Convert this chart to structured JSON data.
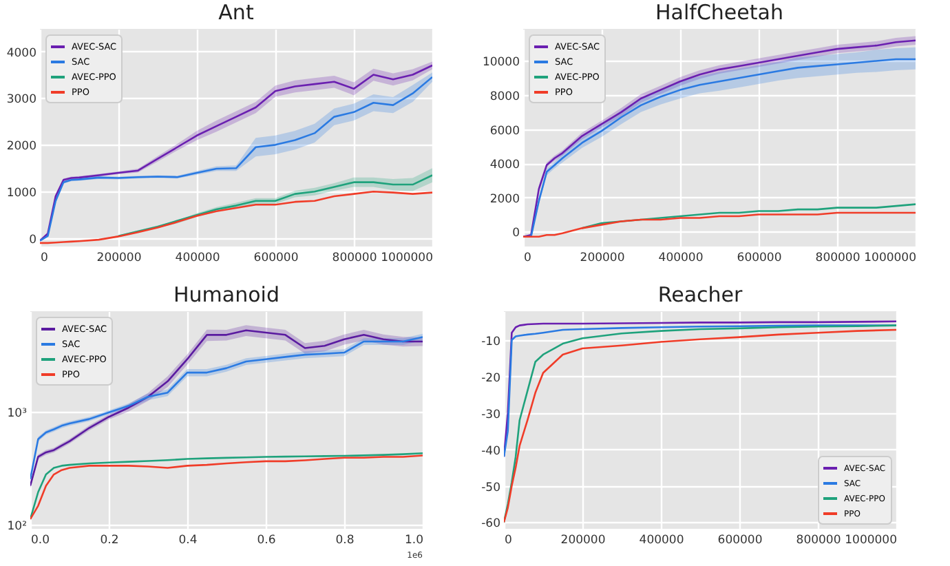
{
  "chart_data": [
    {
      "type": "line",
      "title": "Ant",
      "x": [
        0,
        20000,
        40000,
        60000,
        80000,
        100000,
        150000,
        200000,
        250000,
        300000,
        350000,
        400000,
        450000,
        500000,
        550000,
        600000,
        650000,
        700000,
        750000,
        800000,
        850000,
        900000,
        950000,
        1000000
      ],
      "xlim": [
        0,
        1000000
      ],
      "xticks": [
        0,
        200000,
        400000,
        600000,
        800000,
        1000000
      ],
      "ylim": [
        -175,
        4480
      ],
      "yticks": [
        0,
        1000,
        2000,
        3000,
        4000
      ],
      "grid": true,
      "legend": "top left",
      "series": [
        {
          "name": "AVEC-SAC",
          "color": "#6a1fb0",
          "values": [
            -50,
            100,
            900,
            1250,
            1290,
            1300,
            1350,
            1400,
            1450,
            1700,
            1950,
            2200,
            2400,
            2600,
            2800,
            3150,
            3250,
            3300,
            3350,
            3200,
            3500,
            3400,
            3500,
            3700
          ],
          "lower": [
            -60,
            80,
            850,
            1220,
            1260,
            1270,
            1320,
            1370,
            1410,
            1640,
            1880,
            2100,
            2280,
            2480,
            2680,
            3030,
            3120,
            3170,
            3220,
            3060,
            3370,
            3270,
            3380,
            3620
          ],
          "upper": [
            -40,
            120,
            950,
            1280,
            1320,
            1330,
            1380,
            1430,
            1490,
            1760,
            2020,
            2300,
            2520,
            2720,
            2920,
            3270,
            3380,
            3430,
            3480,
            3340,
            3630,
            3530,
            3620,
            3780
          ]
        },
        {
          "name": "SAC",
          "color": "#2a7ae2",
          "values": [
            -50,
            50,
            800,
            1200,
            1250,
            1260,
            1300,
            1290,
            1310,
            1320,
            1310,
            1400,
            1490,
            1500,
            1950,
            2000,
            2100,
            2250,
            2600,
            2700,
            2900,
            2850,
            3100,
            3450
          ],
          "lower": [
            -60,
            30,
            750,
            1170,
            1220,
            1230,
            1270,
            1260,
            1280,
            1290,
            1280,
            1360,
            1440,
            1440,
            1750,
            1800,
            1900,
            2050,
            2420,
            2520,
            2720,
            2680,
            2920,
            3350
          ],
          "upper": [
            -40,
            70,
            850,
            1230,
            1280,
            1290,
            1330,
            1320,
            1340,
            1350,
            1340,
            1440,
            1540,
            1560,
            2150,
            2200,
            2300,
            2450,
            2780,
            2880,
            3080,
            3020,
            3280,
            3550
          ]
        },
        {
          "name": "AVEC-PPO",
          "color": "#1fa27c",
          "values": [
            null,
            null,
            null,
            null,
            null,
            null,
            null,
            50,
            150,
            250,
            null,
            500,
            620,
            700,
            800,
            800,
            950,
            1000,
            1100,
            1200,
            1200,
            1150,
            1150,
            1350
          ],
          "lower": [
            -105,
            -100,
            -95,
            -85,
            -75,
            -65,
            -40,
            35,
            130,
            225,
            320,
            460,
            570,
            640,
            740,
            740,
            880,
            920,
            1020,
            1100,
            1100,
            1030,
            1010,
            1200
          ],
          "upper": [
            -95,
            -90,
            -85,
            -75,
            -65,
            -55,
            -20,
            65,
            170,
            275,
            380,
            540,
            670,
            760,
            860,
            860,
            1020,
            1080,
            1180,
            1300,
            1300,
            1270,
            1290,
            1500
          ]
        },
        {
          "name": "PPO",
          "color": "#f03c28",
          "values": [
            -100,
            -100,
            -90,
            -80,
            -70,
            -60,
            -30,
            40,
            130,
            230,
            350,
            480,
            580,
            650,
            720,
            720,
            780,
            800,
            900,
            950,
            1000,
            980,
            950,
            980
          ]
        }
      ]
    },
    {
      "type": "line",
      "title": "HalfCheetah",
      "x": [
        0,
        20000,
        40000,
        60000,
        80000,
        100000,
        150000,
        200000,
        250000,
        300000,
        350000,
        400000,
        450000,
        500000,
        550000,
        600000,
        650000,
        700000,
        750000,
        800000,
        850000,
        900000,
        950000,
        1000000
      ],
      "xlim": [
        0,
        1000000
      ],
      "xticks": [
        0,
        200000,
        400000,
        600000,
        800000,
        1000000
      ],
      "ylim": [
        -875,
        11875
      ],
      "yticks": [
        0,
        2000,
        4000,
        6000,
        8000,
        10000
      ],
      "grid": true,
      "legend": "top left",
      "series": [
        {
          "name": "AVEC-SAC",
          "color": "#6a1fb0",
          "values": [
            -300,
            -200,
            2500,
            3900,
            4300,
            4600,
            5600,
            6300,
            7000,
            7800,
            8300,
            8800,
            9200,
            9500,
            9700,
            9900,
            10100,
            10300,
            10500,
            10700,
            10800,
            10900,
            11100,
            11200
          ],
          "lower": [
            -320,
            -250,
            2300,
            3750,
            4150,
            4450,
            5400,
            6100,
            6750,
            7550,
            8050,
            8550,
            8950,
            9250,
            9450,
            9650,
            9850,
            10050,
            10250,
            10450,
            10550,
            10650,
            10850,
            10950
          ],
          "upper": [
            -280,
            -150,
            2700,
            4050,
            4450,
            4750,
            5800,
            6500,
            7250,
            8050,
            8550,
            9050,
            9450,
            9750,
            9950,
            10150,
            10350,
            10550,
            10750,
            10950,
            11050,
            11150,
            11350,
            11450
          ]
        },
        {
          "name": "SAC",
          "color": "#2a7ae2",
          "values": [
            -300,
            -300,
            1800,
            3500,
            3900,
            4300,
            5200,
            5900,
            6700,
            7400,
            7900,
            8300,
            8600,
            8800,
            9000,
            9200,
            9400,
            9600,
            9700,
            9800,
            9900,
            10000,
            10100,
            10100
          ],
          "lower": [
            -320,
            -300,
            1600,
            3300,
            3700,
            4050,
            4900,
            5550,
            6300,
            7000,
            7450,
            7800,
            8100,
            8250,
            8450,
            8650,
            8850,
            9000,
            9100,
            9200,
            9300,
            9350,
            9450,
            9500
          ],
          "upper": [
            -280,
            -200,
            2000,
            3700,
            4100,
            4550,
            5500,
            6250,
            7100,
            7800,
            8350,
            8800,
            9100,
            9350,
            9550,
            9750,
            9950,
            10200,
            10300,
            10400,
            10500,
            10650,
            10750,
            10800
          ]
        },
        {
          "name": "AVEC-PPO",
          "color": "#1fa27c",
          "values": [
            null,
            null,
            null,
            null,
            null,
            null,
            200,
            500,
            null,
            700,
            800,
            900,
            1000,
            1100,
            1100,
            1200,
            1200,
            1300,
            1300,
            1400,
            1400,
            1400,
            1500,
            1600
          ]
        },
        {
          "name": "PPO",
          "color": "#f03c28",
          "values": [
            -300,
            -300,
            -300,
            -200,
            -200,
            -100,
            200,
            400,
            600,
            700,
            700,
            800,
            800,
            900,
            900,
            1000,
            1000,
            1000,
            1000,
            1100,
            1100,
            1100,
            1100,
            1100
          ]
        }
      ]
    },
    {
      "type": "line",
      "title": "Humanoid",
      "x": [
        0,
        0.02,
        0.04,
        0.06,
        0.08,
        0.1,
        0.15,
        0.2,
        0.25,
        0.3,
        0.35,
        0.4,
        0.45,
        0.5,
        0.55,
        0.6,
        0.65,
        0.7,
        0.75,
        0.8,
        0.85,
        0.9,
        0.95,
        1.0
      ],
      "xlim": [
        0,
        1
      ],
      "xticks": [
        {
          "value": 0,
          "label": "0.0"
        },
        {
          "value": 0.2,
          "label": "0.2"
        },
        {
          "value": 0.4,
          "label": "0.4"
        },
        {
          "value": 0.6,
          "label": "0.6"
        },
        {
          "value": 0.8,
          "label": "0.8"
        },
        {
          "value": 1,
          "label": "1.0"
        }
      ],
      "ylim": [
        92,
        7700
      ],
      "yticks": [
        {
          "value": 100,
          "label": "10²"
        },
        {
          "value": 1000,
          "label": "10³"
        }
      ],
      "log": true,
      "grid": true,
      "legend": "top left",
      "annotations": [
        "1e6"
      ],
      "series": [
        {
          "name": "AVEC-SAC",
          "color": "#5a1aa0",
          "values": [
            221,
            398,
            436,
            456,
            500,
            546,
            716,
            897,
            1080,
            1350,
            1850,
            2900,
            4760,
            4760,
            5220,
            4990,
            4760,
            3640,
            3810,
            4350,
            4760,
            4350,
            4160,
            4160
          ],
          "lower": [
            210,
            380,
            415,
            435,
            475,
            520,
            680,
            850,
            1000,
            1240,
            1650,
            2600,
            4200,
            4250,
            4650,
            4450,
            4250,
            3250,
            3400,
            3900,
            4250,
            3900,
            3750,
            3800
          ],
          "upper": [
            232,
            416,
            457,
            477,
            525,
            572,
            752,
            944,
            1160,
            1460,
            2050,
            3200,
            5300,
            5270,
            5800,
            5530,
            5270,
            4030,
            4220,
            4800,
            5270,
            4800,
            4570,
            4520
          ]
        },
        {
          "name": "SAC",
          "color": "#2a7ae2",
          "values": [
            253,
            571,
            654,
            697,
            749,
            784,
            858,
            982,
            1120,
            1350,
            1470,
            2210,
            2210,
            2420,
            2770,
            2900,
            3040,
            3180,
            3240,
            3320,
            4160,
            4160,
            4160,
            4560
          ],
          "lower": [
            240,
            545,
            625,
            665,
            715,
            750,
            820,
            940,
            1060,
            1260,
            1370,
            2050,
            2050,
            2250,
            2580,
            2700,
            2830,
            2960,
            3020,
            3090,
            3870,
            3870,
            3870,
            4250
          ],
          "upper": [
            266,
            597,
            683,
            729,
            783,
            818,
            896,
            1024,
            1180,
            1440,
            1570,
            2370,
            2370,
            2590,
            2960,
            3100,
            3250,
            3400,
            3460,
            3550,
            4450,
            4450,
            4450,
            4870
          ]
        },
        {
          "name": "AVEC-PPO",
          "color": "#1fa27c",
          "values": [
            112,
            194,
            278,
            318,
            332,
            338,
            348,
            354,
            360,
            366,
            372,
            381,
            386,
            390,
            394,
            398,
            400,
            402,
            404,
            406,
            410,
            414,
            420,
            428
          ]
        },
        {
          "name": "PPO",
          "color": "#f03c28",
          "values": [
            112,
            147,
            221,
            278,
            304,
            318,
            332,
            332,
            332,
            327,
            318,
            332,
            338,
            348,
            357,
            364,
            364,
            371,
            381,
            391,
            391,
            398,
            398,
            409
          ]
        }
      ]
    },
    {
      "type": "line",
      "title": "Reacher",
      "x": [
        0,
        10000,
        20000,
        30000,
        40000,
        60000,
        80000,
        100000,
        150000,
        200000,
        300000,
        400000,
        500000,
        600000,
        700000,
        800000,
        900000,
        1000000
      ],
      "xlim": [
        0,
        1000000
      ],
      "xticks": [
        0,
        200000,
        400000,
        600000,
        800000,
        1000000
      ],
      "ylim": [
        -61.8,
        -2.1
      ],
      "yticks": [
        -60,
        -50,
        -40,
        -30,
        -20,
        -10
      ],
      "grid": true,
      "legend": "bottom right",
      "series": [
        {
          "name": "AVEC-SAC",
          "color": "#6a1fb0",
          "values": [
            -42,
            -30,
            -8,
            -6.5,
            -6,
            -5.7,
            -5.6,
            -5.5,
            -5.5,
            -5.5,
            -5.4,
            -5.3,
            -5.2,
            -5.2,
            -5.1,
            -5.1,
            -5,
            -4.9
          ]
        },
        {
          "name": "SAC",
          "color": "#2a7ae2",
          "values": [
            -42,
            -35,
            -10,
            -9,
            -8.8,
            -8.5,
            -8.3,
            -8,
            -7.2,
            -7,
            -6.7,
            -6.5,
            -6.3,
            -6.2,
            -6.1,
            -6,
            -6,
            -6
          ]
        },
        {
          "name": "AVEC-PPO",
          "color": "#1fa27c",
          "values": [
            -60,
            -55,
            -49,
            -42,
            -32,
            -24,
            -16,
            -14,
            -11,
            -9.5,
            -8.2,
            -7.5,
            -7,
            -6.8,
            -6.5,
            -6.3,
            -6.2,
            -6
          ]
        },
        {
          "name": "PPO",
          "color": "#f03c28",
          "values": [
            -60,
            -56,
            -50,
            -45,
            -39,
            -32,
            -24.5,
            -19,
            -14,
            -12.3,
            -11.5,
            -10.5,
            -9.8,
            -9.2,
            -8.5,
            -8,
            -7.5,
            -7.2
          ]
        }
      ]
    }
  ]
}
